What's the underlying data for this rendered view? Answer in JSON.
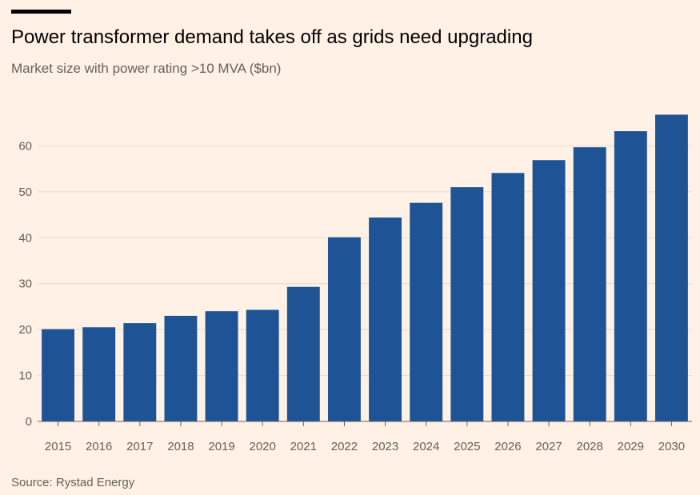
{
  "header": {
    "title": "Power transformer demand takes off as grids need upgrading",
    "subtitle": "Market size with power rating >10 MVA ($bn)"
  },
  "footer": {
    "source": "Source: Rystad Energy"
  },
  "colors": {
    "bar": "#1E5496",
    "gridline": "#E6D9CE",
    "axis": "#66605C",
    "tick_text": "#66605C",
    "background": "#FFF1E5"
  },
  "chart_data": {
    "type": "bar",
    "title": "Power transformer demand takes off as grids need upgrading",
    "subtitle": "Market size with power rating >10 MVA ($bn)",
    "xlabel": "",
    "ylabel": "",
    "categories": [
      "2015",
      "2016",
      "2017",
      "2018",
      "2019",
      "2020",
      "2021",
      "2022",
      "2023",
      "2024",
      "2025",
      "2026",
      "2027",
      "2028",
      "2029",
      "2030"
    ],
    "values": [
      20.1,
      20.5,
      21.4,
      23.0,
      24.0,
      24.3,
      29.3,
      40.1,
      44.4,
      47.6,
      51.0,
      54.1,
      56.9,
      59.7,
      63.2,
      66.8
    ],
    "ylim": [
      0,
      70
    ],
    "yticks": [
      0,
      10,
      20,
      30,
      40,
      50,
      60
    ],
    "grid": true,
    "legend": "none"
  }
}
